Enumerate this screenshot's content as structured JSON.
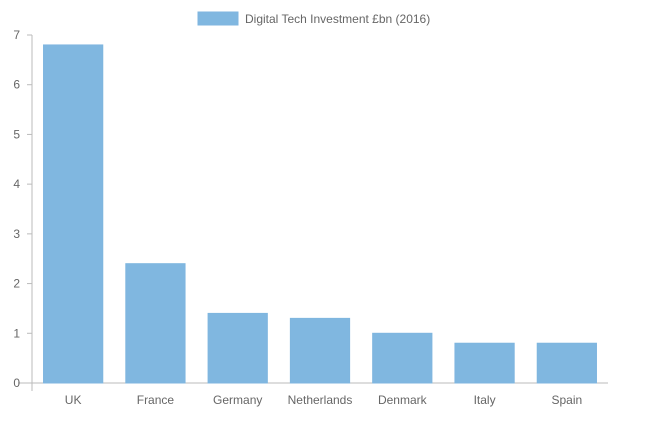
{
  "chart_data": {
    "type": "bar",
    "categories": [
      "UK",
      "France",
      "Germany",
      "Netherlands",
      "Denmark",
      "Italy",
      "Spain"
    ],
    "series": [
      {
        "name": "Digital Tech Investment £bn (2016)",
        "values": [
          6.8,
          2.4,
          1.4,
          1.3,
          1.0,
          0.8,
          0.8
        ]
      }
    ],
    "y_ticks": [
      "0",
      "1",
      "2",
      "3",
      "4",
      "5",
      "6",
      "7"
    ],
    "ylim": [
      0,
      7
    ],
    "grid": false,
    "legend_position": "top",
    "colors": {
      "bar": "#80b7e0",
      "bar_border": "#7fb6df",
      "axis": "#bbbbbb",
      "text": "#666666"
    }
  }
}
